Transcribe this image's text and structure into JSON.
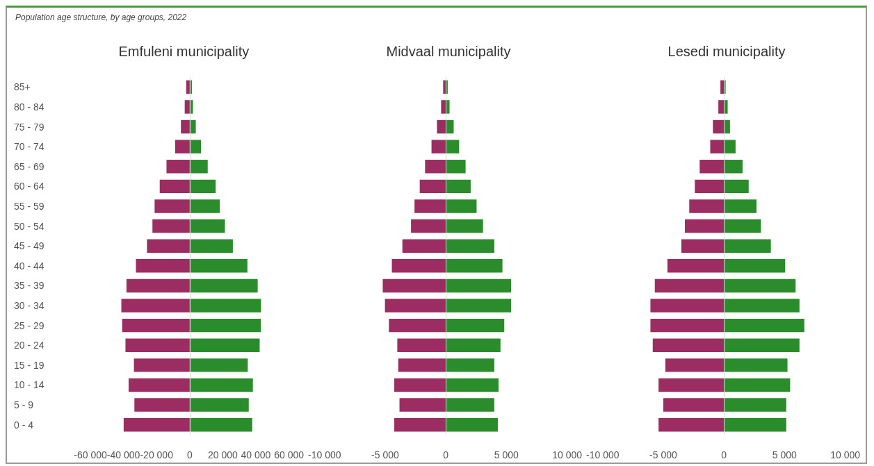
{
  "chart_data": [
    {
      "type": "bar",
      "orientation": "horizontal",
      "stacked": true,
      "title": "Emfuleni municipality",
      "annotations": [
        "Population age structure, by age groups, 2022"
      ],
      "categories": [
        "85+",
        "80 - 84",
        "75 - 79",
        "70 - 74",
        "65 - 69",
        "60 - 64",
        "55 - 59",
        "50 - 54",
        "45 - 49",
        "40 - 44",
        "35 - 39",
        "30 - 34",
        "25 - 29",
        "20 - 24",
        "15 - 19",
        "10 - 14",
        "5 - 9",
        "0 - 4"
      ],
      "series": [
        {
          "color": "#9b2d62",
          "values": [
            -2100,
            -3000,
            -5300,
            -8800,
            -14000,
            -18100,
            -21200,
            -22500,
            -25800,
            -32500,
            -38200,
            -41300,
            -40800,
            -38800,
            -33700,
            -36900,
            -33400,
            -39900
          ]
        },
        {
          "color": "#2a8c2a",
          "values": [
            1400,
            2000,
            3700,
            6800,
            10900,
            15700,
            18200,
            21300,
            26100,
            34900,
            41100,
            43100,
            43000,
            42300,
            35100,
            38200,
            35700,
            37800
          ]
        }
      ],
      "xlim": [
        -60000,
        60000
      ],
      "xticks": [
        {
          "value": -60000,
          "label": "-60 000"
        },
        {
          "value": -40000,
          "label": "-40 000"
        },
        {
          "value": -20000,
          "label": "-20 000"
        },
        {
          "value": 0,
          "label": "0"
        },
        {
          "value": 20000,
          "label": "20 000"
        },
        {
          "value": 40000,
          "label": "40 000"
        },
        {
          "value": 60000,
          "label": "60 000"
        }
      ],
      "ref_lines": [
        {
          "axis": "x",
          "value": 0,
          "color": "#d8d8d8"
        }
      ]
    },
    {
      "type": "bar",
      "orientation": "horizontal",
      "stacked": true,
      "title": "Midvaal municipality",
      "categories": [
        null,
        null,
        null,
        null,
        null,
        null,
        null,
        null,
        null,
        null,
        null,
        null,
        null,
        null,
        null,
        null,
        null,
        null
      ],
      "series": [
        {
          "color": "#9b2d62",
          "values": [
            -220,
            -390,
            -730,
            -1180,
            -1710,
            -2150,
            -2580,
            -2870,
            -3580,
            -4450,
            -5200,
            -5020,
            -4690,
            -4000,
            -3920,
            -4250,
            -3820,
            -4250
          ]
        },
        {
          "color": "#2a8c2a",
          "values": [
            160,
            310,
            650,
            1100,
            1630,
            2050,
            2540,
            3070,
            4000,
            4670,
            5380,
            5380,
            4820,
            4510,
            4000,
            4350,
            4000,
            4290
          ]
        }
      ],
      "xlim": [
        -10000,
        10000
      ],
      "xticks": [
        {
          "value": -10000,
          "label": "-10 000"
        },
        {
          "value": -5000,
          "label": "-5 000"
        },
        {
          "value": 0,
          "label": "0"
        },
        {
          "value": 5000,
          "label": "5 000"
        },
        {
          "value": 10000,
          "label": "10 000"
        }
      ],
      "ref_lines": [
        {
          "axis": "x",
          "value": 0,
          "color": "#d8d8d8"
        }
      ],
      "tick_labels": "x"
    },
    {
      "type": "bar",
      "orientation": "horizontal",
      "stacked": true,
      "title": "Lesedi municipality",
      "categories": [
        null,
        null,
        null,
        null,
        null,
        null,
        null,
        null,
        null,
        null,
        null,
        null,
        null,
        null,
        null,
        null,
        null,
        null
      ],
      "series": [
        {
          "color": "#9b2d62",
          "values": [
            -290,
            -460,
            -910,
            -1130,
            -2000,
            -2400,
            -2860,
            -3220,
            -3510,
            -4660,
            -5700,
            -6060,
            -6060,
            -5870,
            -4830,
            -5390,
            -5000,
            -5390
          ]
        },
        {
          "color": "#2a8c2a",
          "values": [
            140,
            310,
            500,
            960,
            1540,
            2040,
            2690,
            3050,
            3870,
            5050,
            5910,
            6230,
            6630,
            6230,
            5240,
            5460,
            5140,
            5140
          ]
        }
      ],
      "xlim": [
        -10000,
        10000
      ],
      "xticks": [
        {
          "value": -10000,
          "label": "-10 000"
        },
        {
          "value": -5000,
          "label": "-5 000"
        },
        {
          "value": 0,
          "label": "0"
        },
        {
          "value": 5000,
          "label": "5 000"
        },
        {
          "value": 10000,
          "label": "10 000"
        }
      ],
      "ref_lines": [
        {
          "axis": "x",
          "value": 0,
          "color": "#d8d8d8"
        }
      ],
      "tick_labels": "x"
    }
  ]
}
